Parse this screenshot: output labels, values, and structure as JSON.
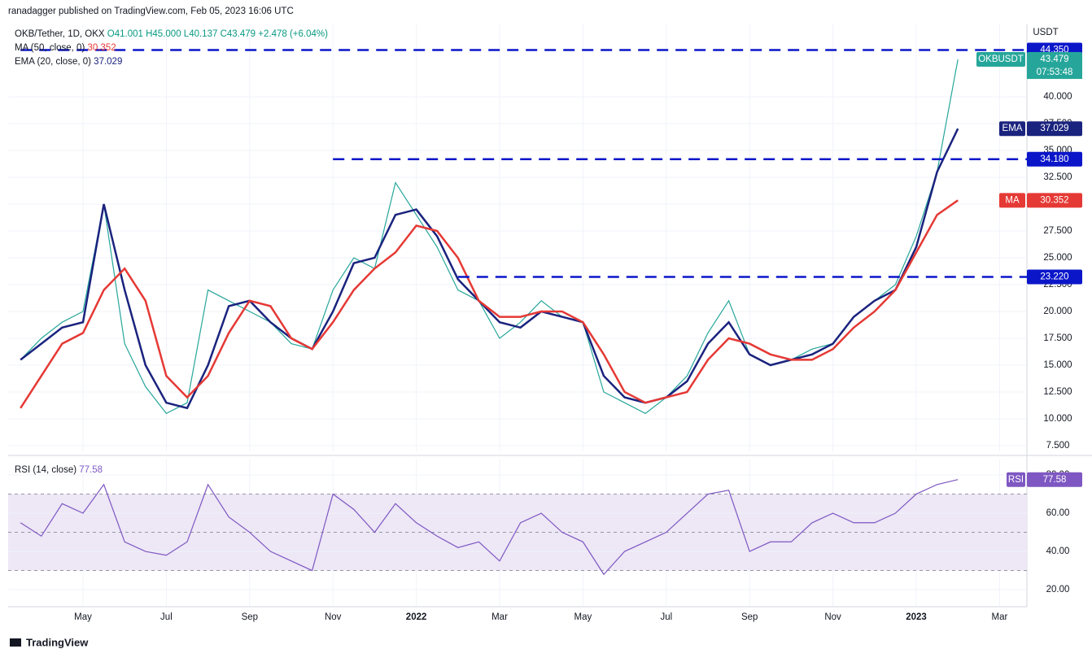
{
  "header": {
    "publisher": "ranadagger published on TradingView.com, Feb 05, 2023 16:06 UTC",
    "brand": "TradingView"
  },
  "chart_data": [
    {
      "type": "line",
      "title": "OKB/Tether, 1D, OKX",
      "ohlc": [
        "O41.001",
        "H45.000",
        "L40.137",
        "C43.479",
        "+2.478 (+6.04%)"
      ],
      "unit": "USDT",
      "ylim": [
        6.97,
        46.74
      ],
      "yticks": [
        {
          "value": 7.5,
          "label": "7.500"
        },
        {
          "value": 10,
          "label": "10.000"
        },
        {
          "value": 12.5,
          "label": "12.500"
        },
        {
          "value": 15,
          "label": "15.000"
        },
        {
          "value": 17.5,
          "label": "17.500"
        },
        {
          "value": 20,
          "label": "20.000"
        },
        {
          "value": 22.5,
          "label": "22.500"
        },
        {
          "value": 25,
          "label": "25.000"
        },
        {
          "value": 27.5,
          "label": "27.500"
        },
        {
          "value": 30,
          "label": "30.000"
        },
        {
          "value": 32.5,
          "label": "32.500"
        },
        {
          "value": 35,
          "label": "35.000"
        },
        {
          "value": 37.5,
          "label": "37.500"
        },
        {
          "value": 40,
          "label": "40.000"
        }
      ],
      "grid": true,
      "levels": [
        {
          "value": 44.35,
          "label": "44.350",
          "from_index": 0
        },
        {
          "value": 34.18,
          "label": "34.180",
          "from_index": 15
        },
        {
          "value": 23.22,
          "label": "23.220",
          "from_index": 21
        }
      ],
      "level_color": "#0b16c9",
      "series": [
        {
          "name": "OKBUSDT",
          "color": "#26a69a",
          "countdown": "07:53:48",
          "values": [
            15.5,
            17.5,
            19,
            20,
            30,
            17,
            13,
            10.5,
            11.5,
            22,
            21,
            20,
            19,
            17,
            16.5,
            22,
            25,
            24,
            32,
            29,
            26,
            22,
            21,
            17.5,
            19,
            21,
            19.5,
            19,
            12.5,
            11.5,
            10.5,
            12,
            14,
            18,
            21,
            16,
            15,
            15.5,
            16.5,
            17,
            19.5,
            21,
            22.5,
            27,
            33,
            43.479,
            null,
            null,
            null
          ]
        },
        {
          "name": "EMA",
          "label": "EMA (20, close, 0)",
          "color": "#1a237e",
          "values": [
            15.5,
            17,
            18.5,
            19,
            30,
            22,
            15,
            11.5,
            11,
            15,
            20.5,
            21,
            19,
            17.5,
            16.5,
            20,
            24.5,
            25,
            29,
            29.5,
            27,
            23,
            21,
            19,
            18.5,
            20,
            19.5,
            19,
            14,
            12,
            11.5,
            12,
            13.5,
            17,
            19,
            16,
            15,
            15.5,
            16,
            17,
            19.5,
            21,
            22,
            26,
            33,
            37.029,
            null,
            null,
            null
          ]
        },
        {
          "name": "MA",
          "label": "MA (50, close, 0)",
          "color": "#e53935",
          "values": [
            11,
            14,
            17,
            18,
            22,
            24,
            21,
            14,
            12,
            14,
            18,
            21,
            20.5,
            17.5,
            16.5,
            19,
            22,
            24,
            25.5,
            28,
            27.5,
            25,
            21,
            19.5,
            19.5,
            20,
            20,
            19,
            16,
            12.5,
            11.5,
            12,
            12.5,
            15.5,
            17.5,
            17,
            16,
            15.5,
            15.5,
            16.5,
            18.5,
            20,
            22,
            25.5,
            29,
            30.352,
            null,
            null,
            null
          ]
        }
      ]
    },
    {
      "type": "line",
      "title": "RSI (14, close)",
      "ylim": [
        11.5,
        88.1
      ],
      "yticks": [
        {
          "value": 20,
          "label": "20.00"
        },
        {
          "value": 40,
          "label": "40.00"
        },
        {
          "value": 60,
          "label": "60.00"
        },
        {
          "value": 80,
          "label": "80.00"
        }
      ],
      "levels": [
        30,
        50,
        70
      ],
      "band_color": "#ede7f6",
      "categories": [
        null,
        null,
        null,
        "May",
        null,
        null,
        null,
        "Jul",
        null,
        null,
        null,
        "Sep",
        null,
        null,
        null,
        "Nov",
        null,
        null,
        null,
        "2022",
        null,
        null,
        null,
        "Mar",
        null,
        null,
        null,
        "May",
        null,
        null,
        null,
        "Jul",
        null,
        null,
        null,
        "Sep",
        null,
        null,
        null,
        "Nov",
        null,
        null,
        null,
        "2023",
        null,
        null,
        null,
        "Mar",
        null
      ],
      "series": [
        {
          "name": "RSI",
          "color": "#7e57c2",
          "values": [
            55,
            48,
            65,
            60,
            75,
            45,
            40,
            38,
            45,
            75,
            58,
            50,
            40,
            35,
            30,
            70,
            62,
            50,
            65,
            55,
            48,
            42,
            45,
            35,
            55,
            60,
            50,
            45,
            28,
            40,
            45,
            50,
            60,
            70,
            72,
            40,
            45,
            45,
            55,
            60,
            55,
            55,
            60,
            70,
            75,
            77.58,
            null,
            null,
            null
          ]
        }
      ]
    }
  ]
}
